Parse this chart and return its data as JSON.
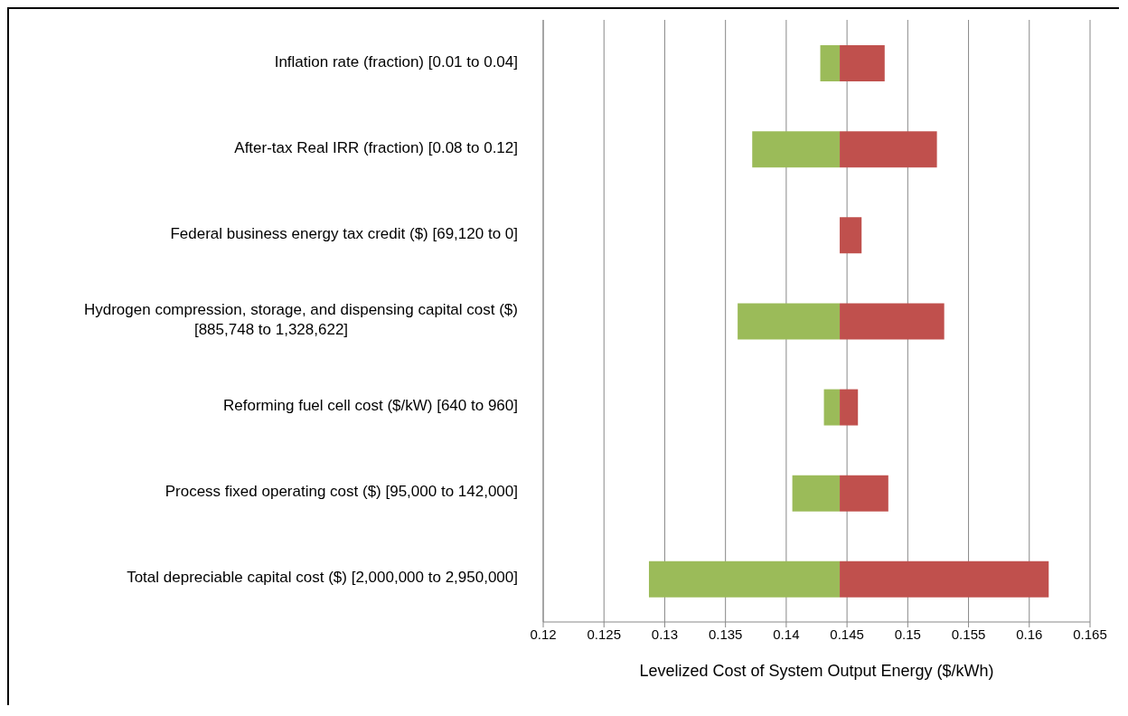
{
  "chart_data": {
    "type": "bar",
    "orientation": "horizontal",
    "xlabel": "Levelized Cost of System Output Energy ($/kWh)",
    "categories": [
      "Inflation rate (fraction) [0.01 to 0.04]",
      "After-tax Real IRR (fraction) [0.08 to 0.12]",
      "Federal business energy tax credit ($) [69,120 to 0]",
      "Hydrogen compression, storage, and dispensing capital cost ($)\n[885,748 to 1,328,622]",
      "Reforming fuel cell cost ($/kW) [640 to 960]",
      "Process fixed operating cost ($) [95,000 to 142,000]",
      "Total depreciable capital cost ($) [2,000,000 to 2,950,000]"
    ],
    "series": [
      {
        "color": "#9bbb59",
        "base": [
          0.1428,
          0.1372,
          null,
          0.136,
          0.1431,
          0.1405,
          0.1287
        ],
        "values": [
          0.0016,
          0.0072,
          null,
          0.0084,
          0.0013,
          0.0039,
          0.0157
        ]
      },
      {
        "color": "#c0504d",
        "base": [
          0.1444,
          0.1444,
          0.1444,
          0.1444,
          0.1444,
          0.1444,
          0.1444
        ],
        "values": [
          0.0037,
          0.008,
          0.0018,
          0.0086,
          0.0015,
          0.004,
          0.0172
        ]
      }
    ],
    "xlim": [
      0.12,
      0.165
    ],
    "xticks": [
      0.12,
      0.125,
      0.13,
      0.135,
      0.14,
      0.145,
      0.15,
      0.155,
      0.16,
      0.165
    ],
    "grid": "x"
  }
}
